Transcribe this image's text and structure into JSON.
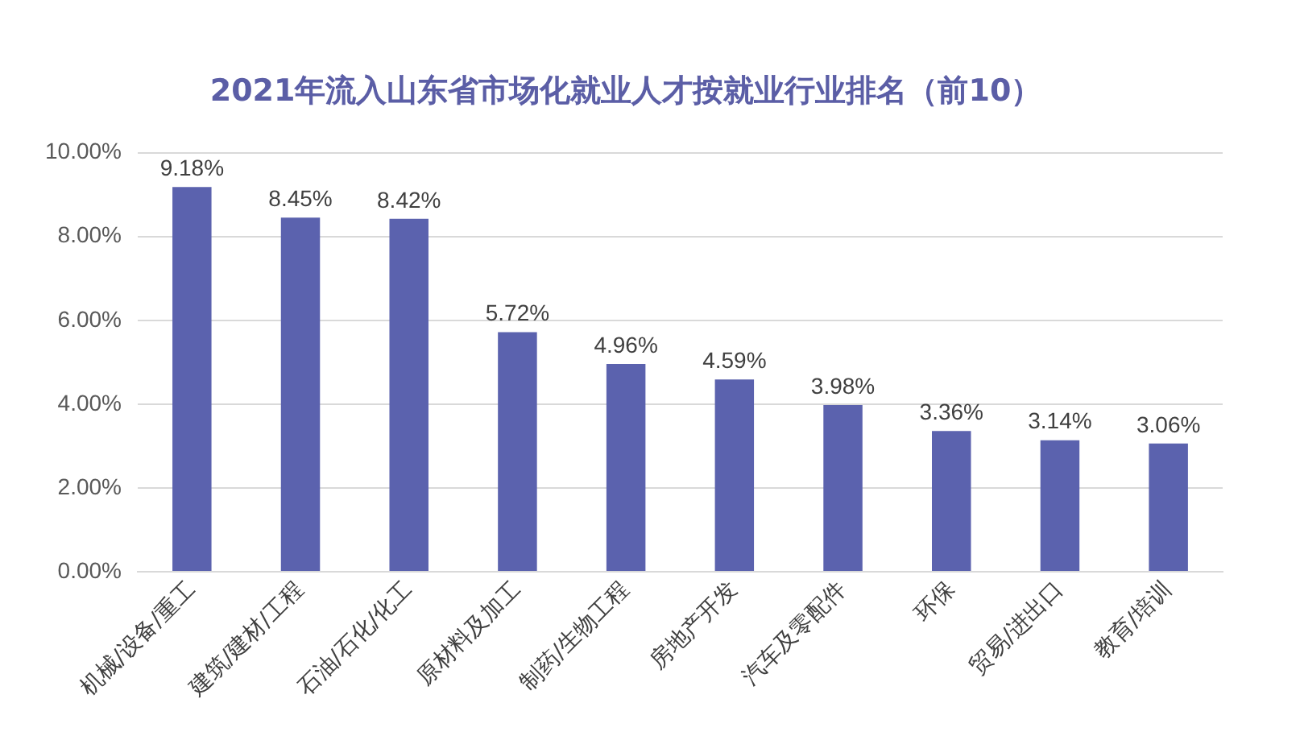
{
  "chart_data": {
    "type": "bar",
    "title": "2021年流入山东省市场化就业人才按就业行业排名（前10）",
    "categories": [
      "机械/设备/重工",
      "建筑/建材/工程",
      "石油/石化/化工",
      "原材料及加工",
      "制药/生物工程",
      "房地产开发",
      "汽车及零配件",
      "环保",
      "贸易/进出口",
      "教育/培训"
    ],
    "values": [
      9.18,
      8.45,
      8.42,
      5.72,
      4.96,
      4.59,
      3.98,
      3.36,
      3.14,
      3.06
    ],
    "value_labels": [
      "9.18%",
      "8.45%",
      "8.42%",
      "5.72%",
      "4.96%",
      "4.59%",
      "3.98%",
      "3.36%",
      "3.14%",
      "3.06%"
    ],
    "color": "#5b62ae",
    "ylim": [
      0,
      10
    ],
    "yticks": [
      {
        "value": 0,
        "label": "0.00%"
      },
      {
        "value": 2,
        "label": "2.00%"
      },
      {
        "value": 4,
        "label": "4.00%"
      },
      {
        "value": 6,
        "label": "6.00%"
      },
      {
        "value": 8,
        "label": "8.00%"
      },
      {
        "value": 10,
        "label": "10.00%"
      }
    ],
    "grid": "y",
    "legend": false
  }
}
